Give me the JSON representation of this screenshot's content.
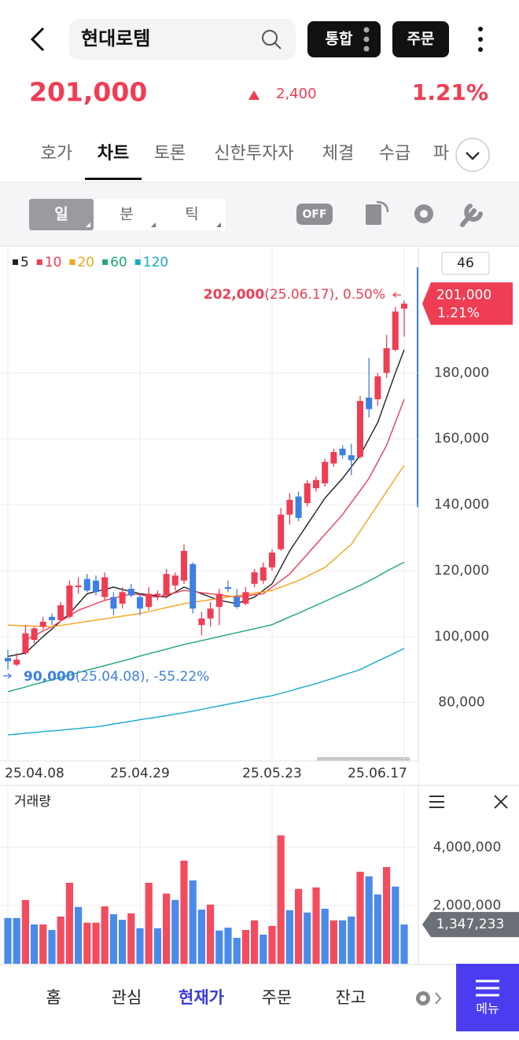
{
  "header": {
    "title": "현대로템",
    "buttons": [
      "통합",
      "주문"
    ]
  },
  "quote": {
    "price": "201,000",
    "change": "2,400",
    "change_pct": "1.21%"
  },
  "tabs": {
    "items": [
      "호가",
      "차트",
      "토론",
      "신한투자자",
      "체결",
      "수급",
      "파"
    ],
    "active": 1
  },
  "toolbar": {
    "periods": [
      "일",
      "분",
      "틱"
    ],
    "active": 0,
    "toggle": "OFF"
  },
  "chart_data": [
    {
      "type": "candlestick",
      "visible_count": 46,
      "grid": true,
      "legend": "top-left",
      "up_color": "#ef3d54",
      "down_color": "#3d7fe6",
      "categories": [
        "25.04.08",
        null,
        null,
        null,
        null,
        null,
        null,
        null,
        null,
        null,
        null,
        null,
        null,
        null,
        null,
        "25.04.29",
        null,
        null,
        null,
        null,
        null,
        null,
        null,
        null,
        null,
        null,
        null,
        null,
        null,
        null,
        "25.05.23",
        null,
        null,
        null,
        null,
        null,
        null,
        null,
        null,
        null,
        null,
        null,
        null,
        null,
        null,
        "25.06.17"
      ],
      "open": [
        93500,
        91500,
        95000,
        99000,
        103000,
        106000,
        105000,
        106000,
        115000,
        117500,
        117000,
        112000,
        112000,
        110000,
        114500,
        112000,
        109000,
        112500,
        112500,
        115500,
        117000,
        122000,
        103500,
        105500,
        109000,
        115000,
        112000,
        110000,
        116000,
        117000,
        121000,
        126500,
        137000,
        142500,
        140500,
        145000,
        146500,
        152500,
        157000,
        155000,
        154500,
        172500,
        172000,
        180000,
        187000,
        199500
      ],
      "high": [
        96000,
        95000,
        103500,
        103000,
        106000,
        107000,
        110500,
        117000,
        118000,
        119000,
        118500,
        119500,
        113500,
        115000,
        116000,
        113000,
        115000,
        114000,
        120500,
        119500,
        128000,
        122500,
        107500,
        110500,
        114500,
        117000,
        114500,
        115000,
        120500,
        122500,
        126500,
        139000,
        143500,
        144000,
        147500,
        148500,
        154000,
        157000,
        158000,
        158500,
        173000,
        184500,
        180000,
        191500,
        200000,
        202000
      ],
      "low": [
        90000,
        91000,
        94500,
        98000,
        102000,
        103500,
        104500,
        105500,
        113000,
        113500,
        112500,
        111000,
        106500,
        108500,
        112000,
        106500,
        108000,
        111000,
        111500,
        114000,
        116000,
        107000,
        100500,
        103000,
        103500,
        113500,
        108500,
        109500,
        115000,
        116000,
        120000,
        126000,
        134000,
        135000,
        139500,
        144000,
        145500,
        151500,
        154000,
        149000,
        154000,
        166500,
        170000,
        178500,
        186500,
        191000
      ],
      "close": [
        92500,
        93000,
        101000,
        102500,
        104500,
        105000,
        109500,
        115500,
        115500,
        114000,
        113500,
        118000,
        108500,
        113500,
        112500,
        108500,
        113000,
        113000,
        119000,
        118500,
        126000,
        108500,
        105500,
        108500,
        113000,
        114500,
        109000,
        113500,
        119500,
        121000,
        125500,
        137000,
        141500,
        136000,
        146500,
        147500,
        153000,
        156000,
        155000,
        153500,
        171500,
        169000,
        179000,
        187500,
        198600,
        201000
      ],
      "series": [
        {
          "name": "5",
          "color": "#222222",
          "values": [
            94000,
            94500,
            95000,
            97500,
            100000,
            102300,
            104700,
            107000,
            110000,
            113000,
            113700,
            114300,
            115000,
            114300,
            113700,
            113000,
            112700,
            112300,
            112000,
            113500,
            115000,
            114000,
            113000,
            112000,
            111000,
            110500,
            110000,
            111000,
            112000,
            114000,
            116000,
            121000,
            126000,
            130000,
            134000,
            138000,
            142000,
            145000,
            148000,
            151500,
            155000,
            160000,
            165000,
            172500,
            180000,
            187000
          ]
        },
        {
          "name": "10",
          "color": "#ef3d54",
          "values": [
            null,
            null,
            99000,
            100300,
            101700,
            103000,
            104700,
            106300,
            108000,
            109000,
            110000,
            111000,
            111700,
            112300,
            113000,
            112700,
            112300,
            112000,
            112700,
            113300,
            114000,
            113700,
            113300,
            113000,
            112700,
            112300,
            112000,
            112300,
            112700,
            113000,
            115000,
            117000,
            119000,
            122000,
            125000,
            128000,
            131000,
            134000,
            137000,
            140700,
            144300,
            148000,
            153000,
            158000,
            165000,
            172000
          ]
        },
        {
          "name": "20",
          "color": "#f5a31a",
          "values": [
            103500,
            103400,
            103300,
            103200,
            103100,
            103000,
            103400,
            103800,
            104200,
            104600,
            105000,
            105400,
            105800,
            106200,
            106600,
            107000,
            107600,
            108200,
            108800,
            109400,
            110000,
            110400,
            110800,
            111200,
            111600,
            112000,
            112400,
            112800,
            113200,
            113600,
            114000,
            115000,
            116000,
            117000,
            118300,
            119700,
            121000,
            123300,
            125700,
            128000,
            132000,
            136000,
            140000,
            144000,
            148000,
            152000
          ]
        },
        {
          "name": "60",
          "color": "#1fa774",
          "values": [
            83300,
            84000,
            84700,
            85500,
            86200,
            86900,
            87600,
            88300,
            89100,
            89800,
            90500,
            91200,
            91900,
            92600,
            93300,
            94100,
            94800,
            95500,
            96200,
            96900,
            97600,
            98200,
            98800,
            99400,
            100000,
            100600,
            101200,
            101800,
            102400,
            103000,
            103600,
            104800,
            106000,
            107100,
            108300,
            109500,
            110700,
            111900,
            113100,
            114300,
            115500,
            116900,
            118300,
            119800,
            121200,
            122600
          ]
        },
        {
          "name": "120",
          "color": "#17a9c9",
          "values": [
            70200,
            70400,
            70700,
            70900,
            71200,
            71400,
            71600,
            71900,
            72100,
            72400,
            72600,
            73000,
            73500,
            73900,
            74300,
            74800,
            75200,
            75600,
            76000,
            76500,
            76900,
            77400,
            77900,
            78500,
            79000,
            79500,
            80000,
            80500,
            81100,
            81600,
            82100,
            82800,
            83500,
            84300,
            85000,
            85700,
            86600,
            87400,
            88300,
            89100,
            90000,
            91300,
            92600,
            93800,
            95100,
            96400
          ]
        }
      ],
      "annotations": [
        {
          "kind": "max",
          "value": 202000,
          "label": "202,000",
          "text": "(25.06.17), 0.50%",
          "color": "#ef3d54"
        },
        {
          "kind": "min",
          "value": 90000,
          "label": "90,000",
          "text": "(25.04.08), -55.22%",
          "color": "#3d7fe6"
        }
      ],
      "ylim": [
        63000,
        218000
      ],
      "yticks": [
        {
          "value": 80000,
          "label": "80,000"
        },
        {
          "value": 100000,
          "label": "100,000"
        },
        {
          "value": 120000,
          "label": "120,000"
        },
        {
          "value": 140000,
          "label": "140,000"
        },
        {
          "value": 160000,
          "label": "160,000"
        },
        {
          "value": 180000,
          "label": "180,000"
        }
      ]
    },
    {
      "type": "bar",
      "title": "거래량",
      "grid": true,
      "last_label": "1,347,233",
      "values": [
        1570000,
        1570000,
        2190000,
        1350000,
        1350000,
        1160000,
        1620000,
        2780000,
        1950000,
        1410000,
        1410000,
        1970000,
        1700000,
        1510000,
        1730000,
        1220000,
        2780000,
        1220000,
        2410000,
        2190000,
        3540000,
        2860000,
        1860000,
        2030000,
        1140000,
        1240000,
        890000,
        1160000,
        1490000,
        1000000,
        1300000,
        4410000,
        1840000,
        2570000,
        1760000,
        2620000,
        1890000,
        1490000,
        1490000,
        1620000,
        3160000,
        3000000,
        2380000,
        3320000,
        2650000,
        1347233
      ],
      "colors": [
        "#4a8bea",
        "#4a8bea",
        "#f24d5f",
        "#4a8bea",
        "#f24d5f",
        "#4a8bea",
        "#f24d5f",
        "#f24d5f",
        "#4a8bea",
        "#f24d5f",
        "#f24d5f",
        "#f24d5f",
        "#4a8bea",
        "#4a8bea",
        "#f24d5f",
        "#4a8bea",
        "#f24d5f",
        "#4a8bea",
        "#f24d5f",
        "#4a8bea",
        "#f24d5f",
        "#4a8bea",
        "#4a8bea",
        "#f24d5f",
        "#4a8bea",
        "#4a8bea",
        "#4a8bea",
        "#f24d5f",
        "#f24d5f",
        "#4a8bea",
        "#f24d5f",
        "#f24d5f",
        "#4a8bea",
        "#f24d5f",
        "#4a8bea",
        "#f24d5f",
        "#4a8bea",
        "#f24d5f",
        "#4a8bea",
        "#4a8bea",
        "#f24d5f",
        "#4a8bea",
        "#4a8bea",
        "#f24d5f",
        "#4a8bea",
        "#4a8bea"
      ],
      "ylim": [
        0,
        6100000
      ],
      "yticks": [
        {
          "value": 2000000,
          "label": "2,000,000"
        },
        {
          "value": 4000000,
          "label": "4,000,000"
        }
      ]
    }
  ],
  "nav": {
    "items": [
      "홈",
      "관심",
      "현재가",
      "주문",
      "잔고"
    ],
    "active": 2,
    "menu": "메뉴"
  }
}
